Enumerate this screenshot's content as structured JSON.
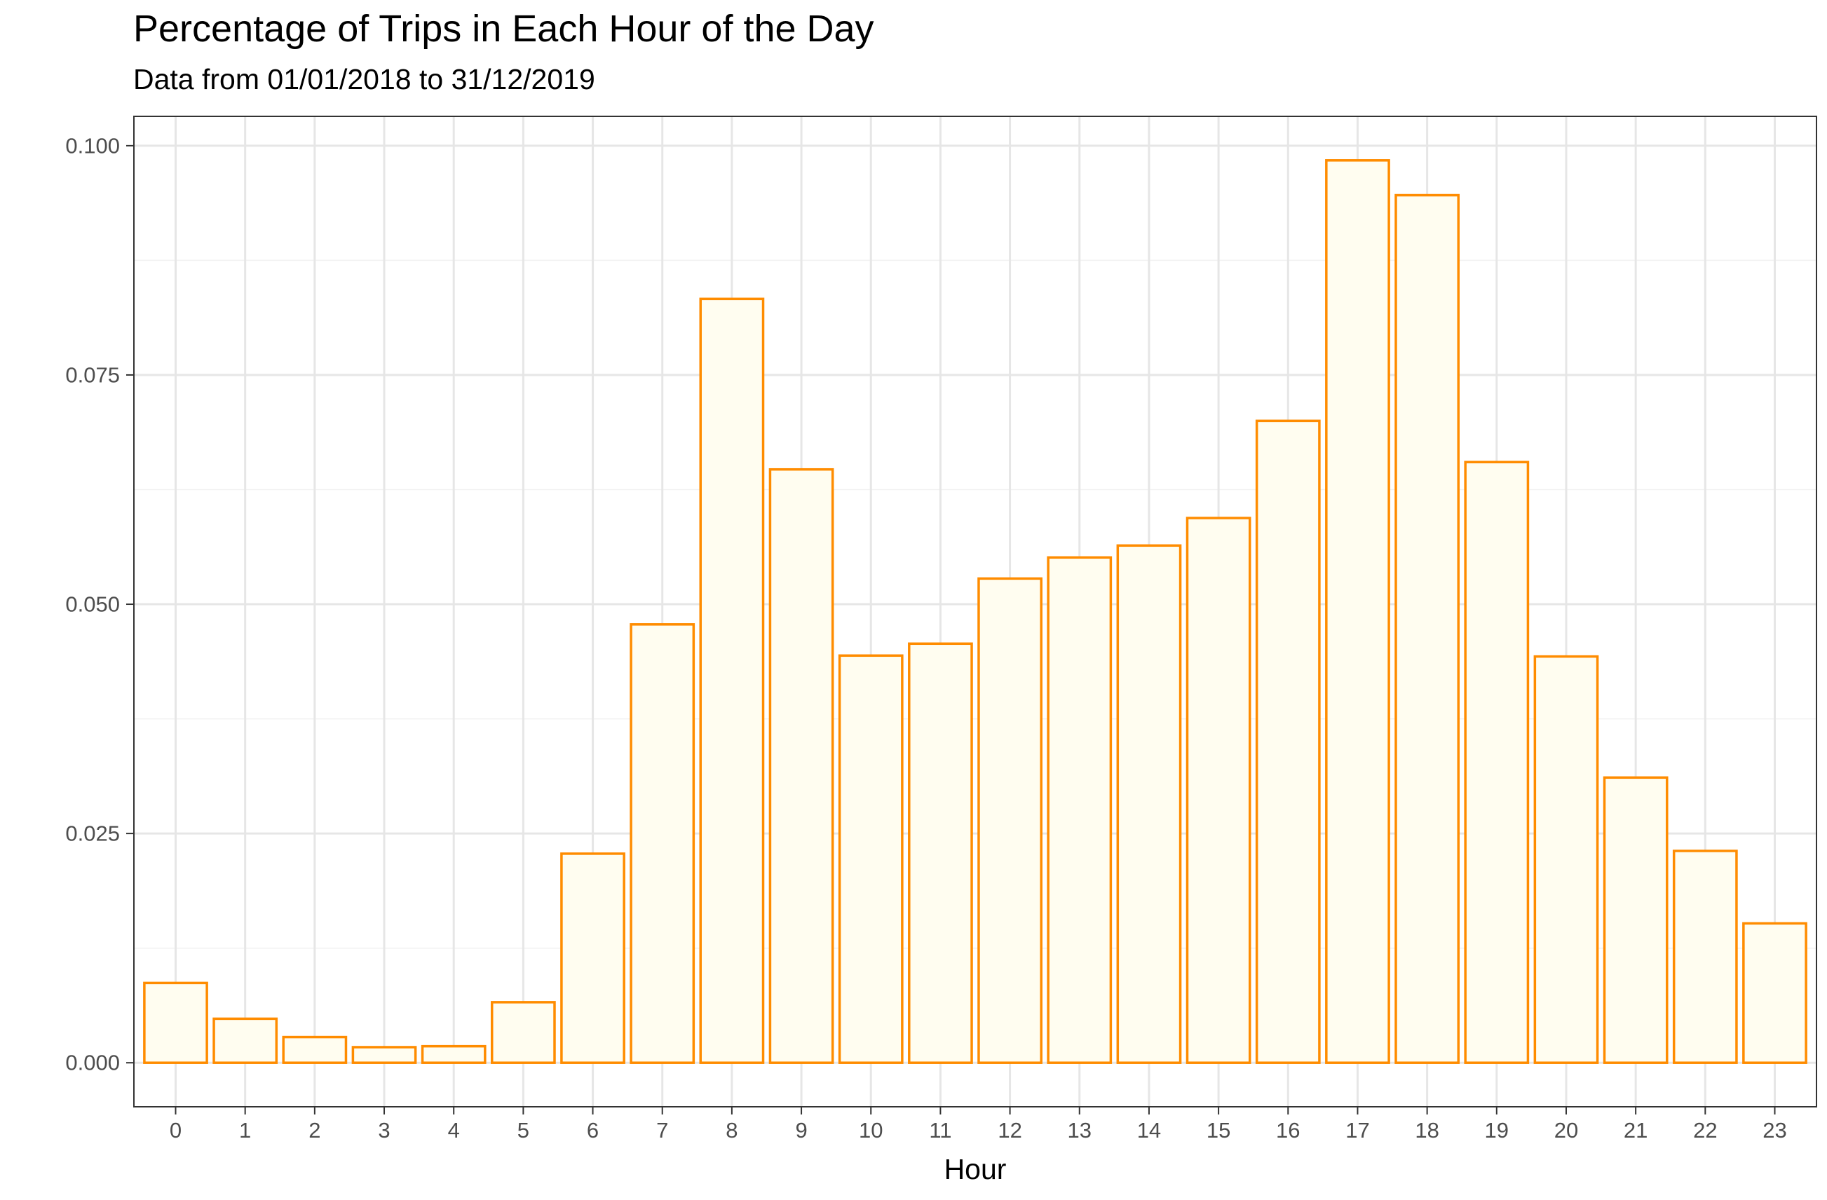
{
  "chart_data": {
    "type": "bar",
    "title": "Percentage of Trips in Each Hour of the Day",
    "subtitle": "Data from 01/01/2018 to 31/12/2019",
    "xlabel": "Hour",
    "ylabel": "",
    "categories": [
      "0",
      "1",
      "2",
      "3",
      "4",
      "5",
      "6",
      "7",
      "8",
      "9",
      "10",
      "11",
      "12",
      "13",
      "14",
      "15",
      "16",
      "17",
      "18",
      "19",
      "20",
      "21",
      "22",
      "23"
    ],
    "values": [
      0.0087,
      0.0048,
      0.0028,
      0.0017,
      0.0018,
      0.0066,
      0.0228,
      0.0478,
      0.0833,
      0.0647,
      0.0444,
      0.0457,
      0.0528,
      0.0551,
      0.0564,
      0.0594,
      0.07,
      0.0984,
      0.0946,
      0.0655,
      0.0443,
      0.0311,
      0.0231,
      0.0152
    ],
    "y_ticks": [
      "0.000",
      "0.025",
      "0.050",
      "0.075",
      "0.100"
    ],
    "ylim": [
      -0.0048,
      0.1032
    ],
    "grid": true,
    "bar_fill": "#FFFDF0",
    "bar_outline": "#FF8C00"
  }
}
